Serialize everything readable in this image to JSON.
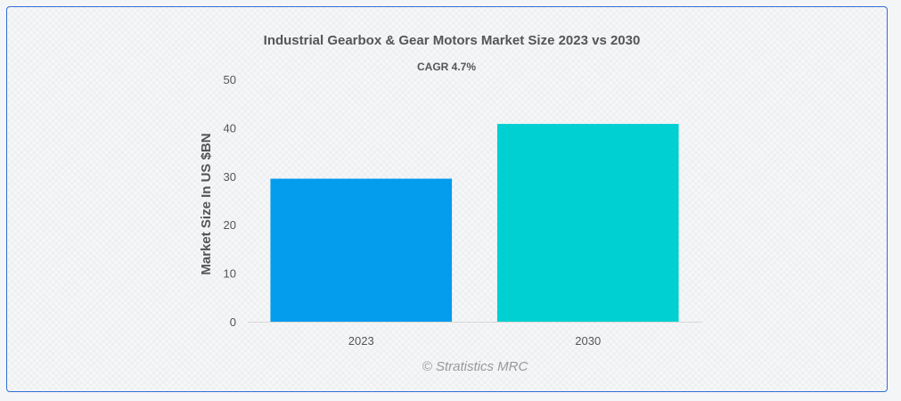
{
  "chart_data": {
    "type": "bar",
    "title": "Industrial Gearbox & Gear Motors Market Size 2023 vs 2030",
    "subtitle": "CAGR 4.7%",
    "xlabel": "",
    "ylabel": "Market Size In US $BN",
    "categories": [
      "2023",
      "2030"
    ],
    "values": [
      29.5,
      40.8
    ],
    "colors": [
      "#049ced",
      "#00d0d2"
    ],
    "ylim": [
      0,
      50
    ],
    "yticks": [
      "0",
      "10",
      "20",
      "30",
      "40",
      "50"
    ],
    "grid": false,
    "legend": "none"
  },
  "credit": "© Stratistics MRC"
}
